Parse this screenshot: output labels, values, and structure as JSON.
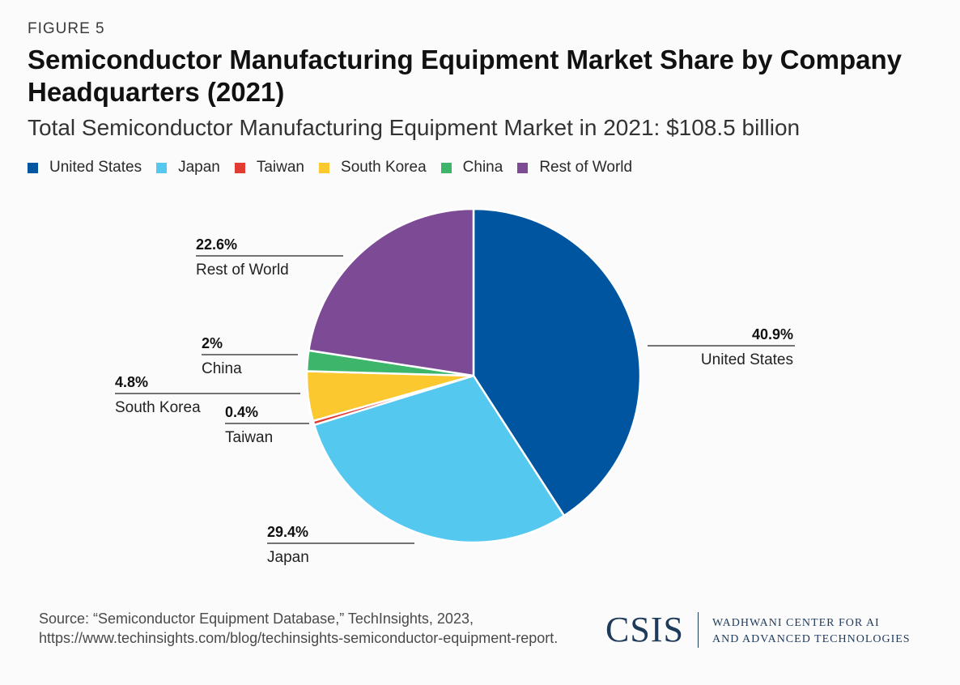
{
  "figure_label": "FIGURE 5",
  "chart_data": {
    "type": "pie",
    "title": "Semiconductor Manufacturing Equipment Market Share by Company Headquarters (2021)",
    "subtitle": "Total Semiconductor Manufacturing Equipment Market in 2021: $108.5 billion",
    "legend_position": "top-left",
    "slices": [
      {
        "label": "United States",
        "value": 40.9,
        "value_label": "40.9%",
        "color": "#0055a0"
      },
      {
        "label": "Japan",
        "value": 29.4,
        "value_label": "29.4%",
        "color": "#55c8ef"
      },
      {
        "label": "Taiwan",
        "value": 0.4,
        "value_label": "0.4%",
        "color": "#e03c31"
      },
      {
        "label": "South Korea",
        "value": 4.8,
        "value_label": "4.8%",
        "color": "#fcc82f"
      },
      {
        "label": "China",
        "value": 2,
        "value_label": "2%",
        "color": "#3db56b"
      },
      {
        "label": "Rest of World",
        "value": 22.6,
        "value_label": "22.6%",
        "color": "#7d4a95"
      }
    ]
  },
  "source": "Source: “Semiconductor Equipment Database,” TechInsights, 2023, https://www.techinsights.com/blog/techinsights-semiconductor-equipment-report.",
  "logo": {
    "name": "CSIS",
    "center_line1": "WADHWANI CENTER FOR AI",
    "center_line2": "AND ADVANCED TECHNOLOGIES"
  }
}
